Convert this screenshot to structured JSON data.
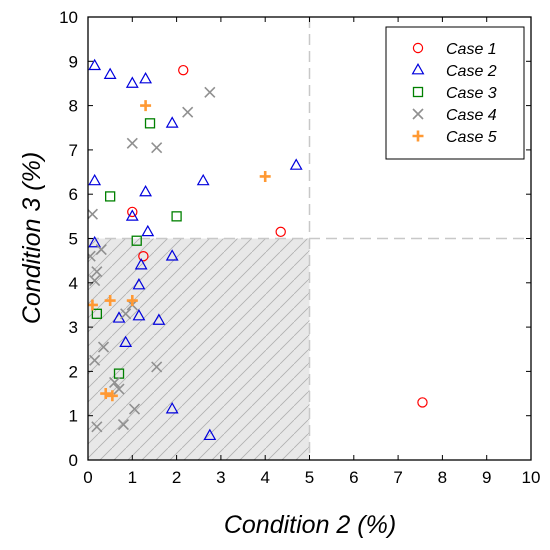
{
  "chart_data": {
    "type": "scatter",
    "xlabel": "Condition 2 (%)",
    "ylabel": "Condition 3 (%)",
    "xlim": [
      0,
      10
    ],
    "ylim": [
      0,
      10
    ],
    "xticks": [
      "0",
      "1",
      "2",
      "3",
      "4",
      "5",
      "6",
      "7",
      "8",
      "9",
      "10"
    ],
    "yticks": [
      "0",
      "1",
      "2",
      "3",
      "4",
      "5",
      "6",
      "7",
      "8",
      "9",
      "10"
    ],
    "grid": false,
    "threshold_x": 5,
    "threshold_y": 5,
    "shaded_region": {
      "x": [
        0,
        5
      ],
      "y": [
        0,
        5
      ],
      "fill": "#e8e8e8",
      "hatch_color": "#b0b0b0"
    },
    "threshold_line_color": "#c8c8c8",
    "legend_position": "top-right",
    "series": [
      {
        "name": "Case 1",
        "marker": "circle",
        "color": "#ff0000",
        "points": [
          [
            2.15,
            8.8
          ],
          [
            1.0,
            5.6
          ],
          [
            1.25,
            4.6
          ],
          [
            4.35,
            5.15
          ],
          [
            7.55,
            1.3
          ]
        ]
      },
      {
        "name": "Case 2",
        "marker": "triangle",
        "color": "#0000dd",
        "points": [
          [
            0.15,
            8.9
          ],
          [
            0.5,
            8.7
          ],
          [
            1.0,
            8.5
          ],
          [
            1.3,
            8.6
          ],
          [
            1.9,
            7.6
          ],
          [
            4.7,
            6.65
          ],
          [
            2.6,
            6.3
          ],
          [
            0.15,
            6.3
          ],
          [
            1.3,
            6.05
          ],
          [
            1.0,
            5.5
          ],
          [
            0.15,
            4.9
          ],
          [
            1.35,
            5.15
          ],
          [
            1.9,
            4.6
          ],
          [
            1.2,
            4.4
          ],
          [
            1.15,
            3.95
          ],
          [
            0.7,
            3.2
          ],
          [
            1.15,
            3.25
          ],
          [
            1.6,
            3.15
          ],
          [
            0.85,
            2.65
          ],
          [
            1.9,
            1.15
          ],
          [
            2.75,
            0.55
          ]
        ]
      },
      {
        "name": "Case 3",
        "marker": "square",
        "color": "#008000",
        "points": [
          [
            1.4,
            7.6
          ],
          [
            0.5,
            5.95
          ],
          [
            2.0,
            5.5
          ],
          [
            1.1,
            4.95
          ],
          [
            0.2,
            3.3
          ],
          [
            0.7,
            1.95
          ]
        ]
      },
      {
        "name": "Case 4",
        "marker": "x",
        "color": "#909090",
        "points": [
          [
            2.75,
            8.3
          ],
          [
            2.25,
            7.85
          ],
          [
            1.0,
            7.15
          ],
          [
            1.55,
            7.05
          ],
          [
            0.1,
            5.55
          ],
          [
            0.3,
            4.75
          ],
          [
            0.05,
            4.6
          ],
          [
            0.2,
            4.25
          ],
          [
            0.15,
            4.05
          ],
          [
            1.0,
            3.5
          ],
          [
            0.85,
            3.3
          ],
          [
            0.35,
            2.55
          ],
          [
            0.15,
            2.25
          ],
          [
            1.55,
            2.1
          ],
          [
            0.6,
            1.75
          ],
          [
            0.7,
            1.6
          ],
          [
            1.05,
            1.15
          ],
          [
            0.2,
            0.75
          ],
          [
            0.8,
            0.8
          ]
        ]
      },
      {
        "name": "Case 5",
        "marker": "plus",
        "color": "#ff9933",
        "points": [
          [
            1.3,
            8.0
          ],
          [
            4.0,
            6.4
          ],
          [
            0.1,
            3.5
          ],
          [
            0.5,
            3.6
          ],
          [
            1.0,
            3.6
          ],
          [
            0.4,
            1.5
          ],
          [
            0.55,
            1.45
          ]
        ]
      }
    ]
  }
}
